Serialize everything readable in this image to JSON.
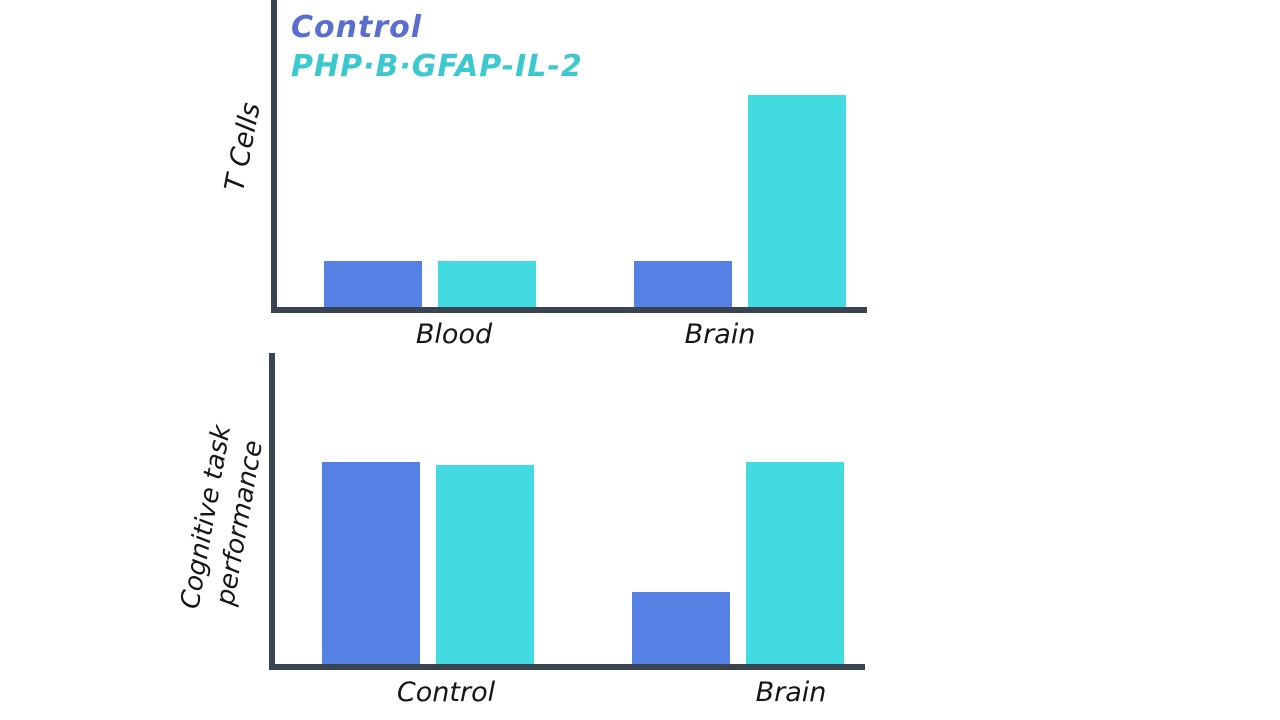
{
  "colors": {
    "control_bar": "#5580e4",
    "treatment_bar": "#42dbe1",
    "axis": "#3a4450",
    "legend_control_text": "#5a6ed0",
    "legend_treatment_text": "#3bc8ce",
    "label_text": "#161616"
  },
  "legend": {
    "position": "top-left",
    "items": [
      {
        "label": "Control",
        "color": "#5a6ed0"
      },
      {
        "label": "PHP·B·GFAP-IL-2",
        "color": "#3bc8ce"
      }
    ]
  },
  "chart_data": [
    {
      "type": "bar",
      "title": "",
      "xlabel": "",
      "ylabel": "T Cells",
      "ylabel_lines": [
        "T Cells"
      ],
      "categories": [
        "Blood",
        "Brain"
      ],
      "series": [
        {
          "name": "Control",
          "color": "#5580e4",
          "values": [
            15,
            15
          ]
        },
        {
          "name": "PHP·B·GFAP-IL-2",
          "color": "#42dbe1",
          "values": [
            15,
            69
          ]
        }
      ],
      "ylim": [
        0,
        100
      ],
      "grid": false,
      "axis_ticks": "none (unlabeled hand-drawn axes, values estimated 0-100)",
      "legend_position": "top-left"
    },
    {
      "type": "bar",
      "title": "",
      "xlabel": "",
      "ylabel": "Cognitive task performance",
      "ylabel_lines": [
        "Cognitive task",
        "performance"
      ],
      "categories": [
        "Control",
        "Brain"
      ],
      "series": [
        {
          "name": "Control",
          "color": "#5580e4",
          "values": [
            65,
            23
          ]
        },
        {
          "name": "PHP·B·GFAP-IL-2",
          "color": "#42dbe1",
          "values": [
            64,
            65
          ]
        }
      ],
      "ylim": [
        0,
        100
      ],
      "grid": false,
      "axis_ticks": "none (unlabeled hand-drawn axes, values estimated 0-100)",
      "legend_position": "none"
    }
  ]
}
